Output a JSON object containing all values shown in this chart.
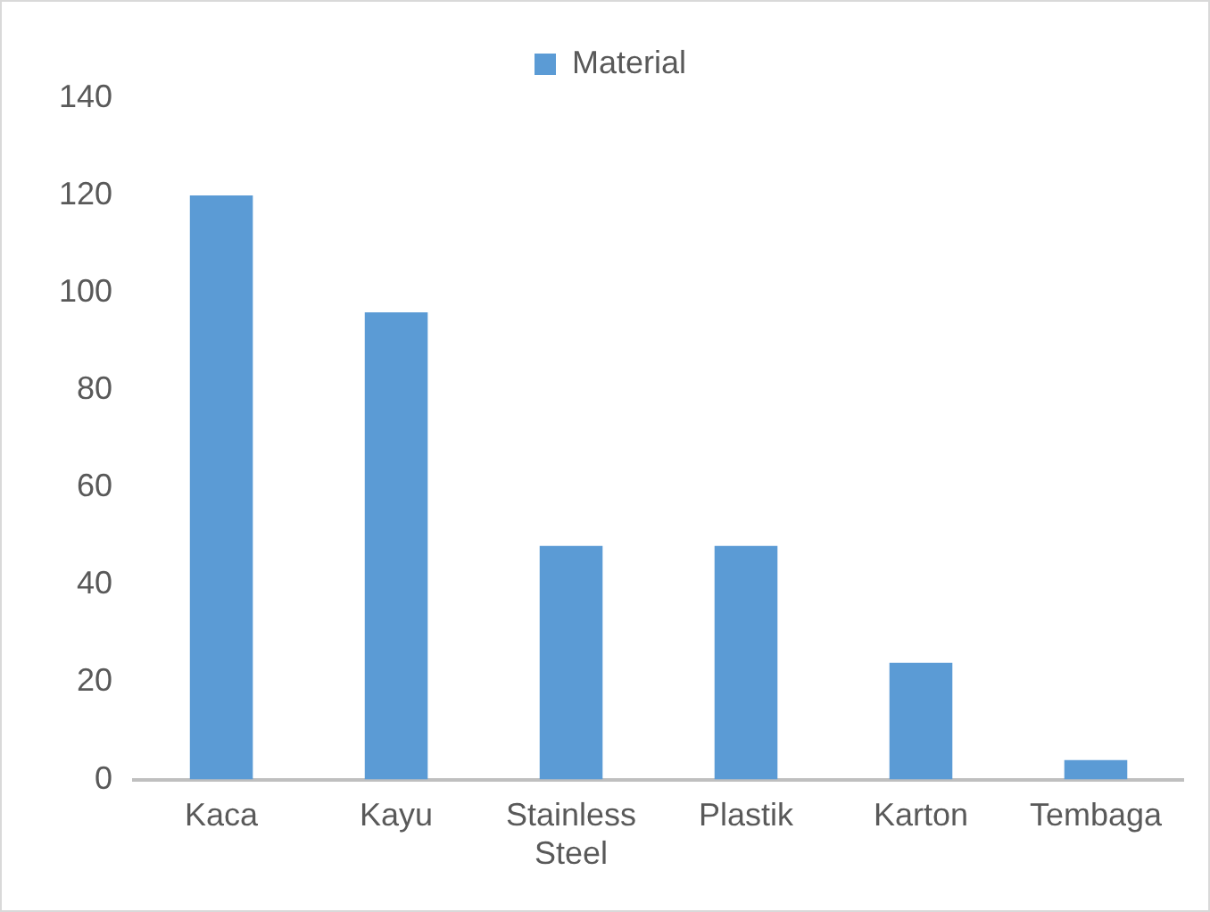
{
  "chart_data": {
    "type": "bar",
    "categories": [
      "Kaca",
      "Kayu",
      "Stainless Steel",
      "Plastik",
      "Karton",
      "Tembaga"
    ],
    "series": [
      {
        "name": "Material",
        "color": "#5b9bd5",
        "values": [
          120,
          96,
          48,
          48,
          24,
          4
        ]
      }
    ],
    "ylim": [
      0,
      140
    ],
    "yticks": [
      0,
      20,
      40,
      60,
      80,
      100,
      120,
      140
    ],
    "grid": false,
    "legend": "top"
  }
}
